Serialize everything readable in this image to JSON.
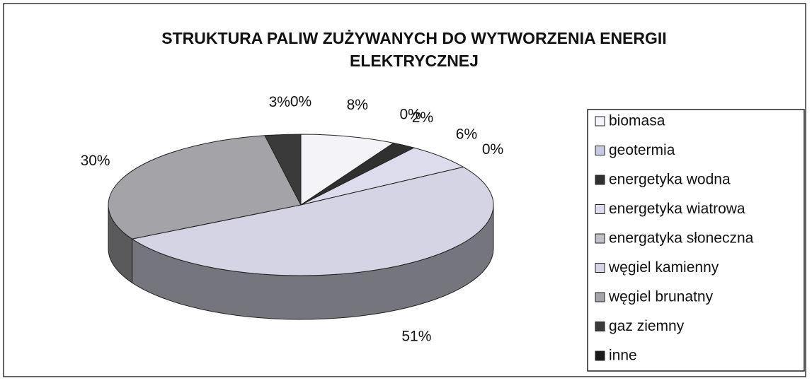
{
  "chart_data": {
    "type": "pie",
    "title": "STRUKTURA PALIW ZUŻYWANYCH DO WYTWORZENIA ENERGII ELEKTRYCZNEJ",
    "categories": [
      "biomasa",
      "geotermia",
      "energetyka wodna",
      "energetyka wiatrowa",
      "energatyka słoneczna",
      "węgiel kamienny",
      "węgiel brunatny",
      "gaz ziemny",
      "inne"
    ],
    "values": [
      8,
      0,
      2,
      6,
      0,
      51,
      30,
      3,
      0
    ],
    "value_labels": [
      "8%",
      "0%",
      "2%",
      "6%",
      "0%",
      "51%",
      "30%",
      "3%",
      "0%"
    ],
    "colors": [
      "#f4f4f8",
      "#c8c8e0",
      "#303030",
      "#dcdcec",
      "#c0c0c8",
      "#d4d4e4",
      "#a4a4a8",
      "#3a3a3a",
      "#1a1a1a"
    ],
    "legend": "right"
  }
}
